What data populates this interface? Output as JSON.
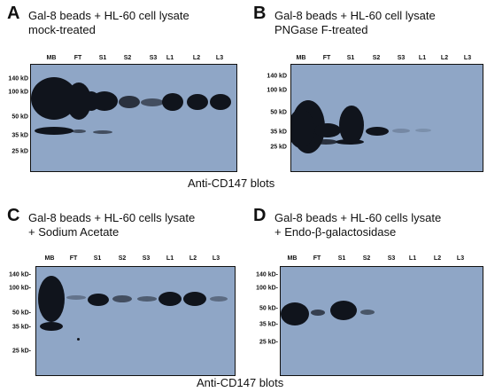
{
  "panels": [
    {
      "letter": "A",
      "title_line1": "Gal-8 beads + HL-60 cell lysate",
      "title_line2": "mock-treated",
      "lanes": [
        "MB",
        "FT",
        "S1",
        "S2",
        "S3",
        "L1",
        "L2",
        "L3"
      ],
      "markers": [
        "140 kD",
        "100 kD",
        "50 kD",
        "35 kD",
        "25 kD"
      ]
    },
    {
      "letter": "B",
      "title_line1": "Gal-8 beads + HL-60 cell lysate",
      "title_line2": "PNGase F-treated",
      "lanes": [
        "MB",
        "FT",
        "S1",
        "S2",
        "S3",
        "L1",
        "L2",
        "L3"
      ],
      "markers": [
        "140 kD",
        "100 kD",
        "50 kD",
        "35 kD",
        "25 kD"
      ]
    },
    {
      "letter": "C",
      "title_line1": "Gal-8 beads + HL-60 cells lysate",
      "title_line2": "+ Sodium Acetate",
      "lanes": [
        "MB",
        "FT",
        "S1",
        "S2",
        "S3",
        "L1",
        "L2",
        "L3"
      ],
      "markers": [
        "140 kD-",
        "100 kD-",
        "50 kD-",
        "35 kD-",
        "25 kD-"
      ]
    },
    {
      "letter": "D",
      "title_line1": "Gal-8 beads + HL-60 cells lysate",
      "title_line2": "+ Endo-β-galactosidase",
      "lanes": [
        "MB",
        "FT",
        "S1",
        "S2",
        "S3",
        "L1",
        "L2",
        "L3"
      ],
      "markers": [
        "140 kD-",
        "100 kD-",
        "50 kD-",
        "35 kD-",
        "25 kD-"
      ]
    }
  ],
  "captions": {
    "top": "Anti-CD147 blots",
    "bottom": "Anti-CD147 blots"
  }
}
